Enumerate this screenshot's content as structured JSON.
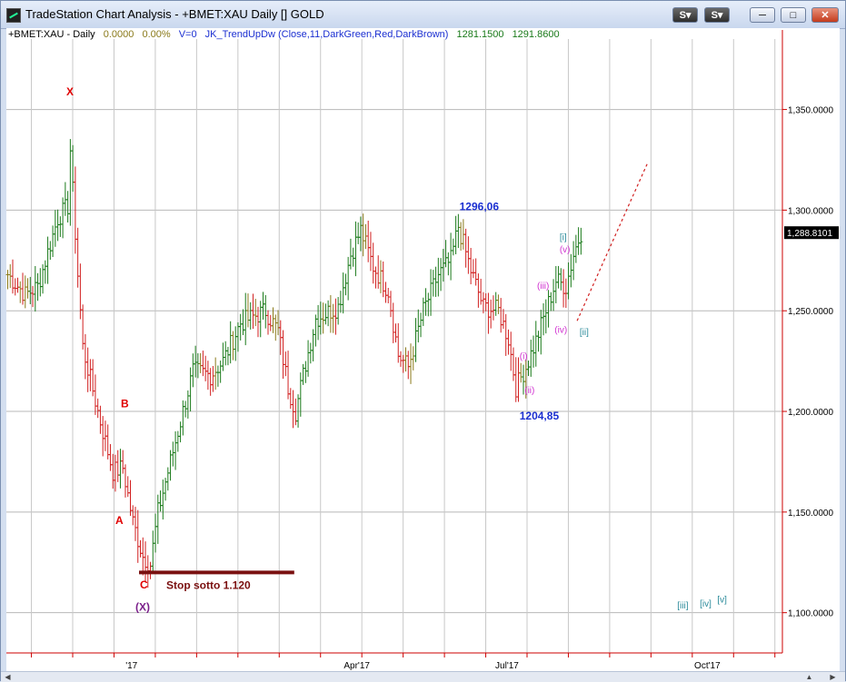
{
  "window": {
    "title": "TradeStation Chart Analysis - +BMET:XAU Daily [] GOLD",
    "buttons": [
      "S",
      "S"
    ],
    "controls": [
      "minimize",
      "restore",
      "close"
    ]
  },
  "status_line": {
    "symbol": "+BMET:XAU - Daily",
    "change": "0.0000",
    "change_pct": "0.00%",
    "volume": "V=0",
    "indicator": "JK_TrendUpDw (Close,11,DarkGreen,Red,DarkBrown)",
    "value1": "1281.1500",
    "value2": "1291.8600"
  },
  "colors": {
    "up": "#1a7a1a",
    "down": "#d11f1f",
    "neutral": "#8a7a1a",
    "label_red": "#e00000",
    "label_blue": "#1b2fd1",
    "label_purple": "#7a1f8a",
    "label_magenta": "#d030d0",
    "label_teal": "#2a8a9a",
    "stop_line": "#7a1010"
  },
  "chart_data": {
    "type": "ohlc",
    "ylim": [
      1080,
      1385
    ],
    "y_ticks": [
      1100,
      1150,
      1200,
      1250,
      1300,
      1350
    ],
    "y_tick_labels": [
      "1,100.0000",
      "1,150.0000",
      "1,200.0000",
      "1,250.0000",
      "1,300.0000",
      "1,350.0000"
    ],
    "last_price_label": "1,288.8101",
    "last_price": 1288.81,
    "x_range_days": [
      0,
      310
    ],
    "x_tick_days": [
      50,
      128,
      190
    ],
    "x_tick_labels": [
      "'17",
      "Apr'17",
      "Jul'17",
      "Oct'17"
    ],
    "x_tick_label_days": [
      50,
      140,
      200,
      280
    ],
    "grid": true,
    "wave_labels": [
      {
        "text": "X",
        "day": 0,
        "price": 1357,
        "color": "label_red"
      },
      {
        "text": "B",
        "day": 45,
        "price": 1202,
        "color": "label_red"
      },
      {
        "text": "A",
        "day": 42,
        "price": 1144,
        "color": "label_red"
      },
      {
        "text": "C",
        "day": 53,
        "price": 1112,
        "color": "label_red"
      },
      {
        "text": "(X)",
        "day": 53,
        "price": 1101,
        "color": "label_purple"
      },
      {
        "text": "1296,06",
        "day": 181,
        "price": 1300,
        "color": "label_blue"
      },
      {
        "text": "1204,85",
        "day": 205,
        "price": 1196,
        "color": "label_blue"
      },
      {
        "text": "[i]",
        "day": 221,
        "price": 1285,
        "color": "label_teal"
      },
      {
        "text": "(v)",
        "day": 221,
        "price": 1279,
        "color": "label_magenta"
      },
      {
        "text": "(iii)",
        "day": 212,
        "price": 1261,
        "color": "label_magenta"
      },
      {
        "text": "(iv)",
        "day": 219,
        "price": 1239,
        "color": "label_magenta"
      },
      {
        "text": "[ii]",
        "day": 229,
        "price": 1238,
        "color": "label_teal"
      },
      {
        "text": "(i)",
        "day": 205,
        "price": 1226,
        "color": "label_magenta"
      },
      {
        "text": "(ii)",
        "day": 207,
        "price": 1209,
        "color": "label_magenta"
      },
      {
        "text": "[iii]",
        "day": 268,
        "price": 1102,
        "color": "label_teal"
      },
      {
        "text": "[iv]",
        "day": 277,
        "price": 1103,
        "color": "label_teal"
      },
      {
        "text": "[v]",
        "day": 284,
        "price": 1105,
        "color": "label_teal"
      }
    ],
    "annotation": {
      "text": "Stop sotto 1.120",
      "price": 1120,
      "day_start": 53,
      "day_end": 115
    },
    "projection": {
      "start": [
        228,
        1245
      ],
      "end": [
        256,
        1323
      ]
    },
    "anchors": [
      [
        0,
        1268
      ],
      [
        7,
        1258
      ],
      [
        12,
        1262
      ],
      [
        20,
        1296
      ],
      [
        24,
        1302
      ],
      [
        25,
        1330
      ],
      [
        28,
        1268
      ],
      [
        30,
        1232
      ],
      [
        36,
        1200
      ],
      [
        39,
        1185
      ],
      [
        42,
        1170
      ],
      [
        46,
        1172
      ],
      [
        50,
        1145
      ],
      [
        54,
        1128
      ],
      [
        57,
        1124
      ],
      [
        60,
        1150
      ],
      [
        67,
        1185
      ],
      [
        74,
        1220
      ],
      [
        81,
        1218
      ],
      [
        86,
        1225
      ],
      [
        93,
        1244
      ],
      [
        103,
        1250
      ],
      [
        108,
        1240
      ],
      [
        112,
        1212
      ],
      [
        115,
        1200
      ],
      [
        118,
        1218
      ],
      [
        123,
        1246
      ],
      [
        132,
        1252
      ],
      [
        137,
        1278
      ],
      [
        141,
        1290
      ],
      [
        146,
        1272
      ],
      [
        152,
        1260
      ],
      [
        156,
        1228
      ],
      [
        160,
        1222
      ],
      [
        166,
        1250
      ],
      [
        172,
        1268
      ],
      [
        177,
        1275
      ],
      [
        180,
        1292
      ],
      [
        185,
        1270
      ],
      [
        190,
        1252
      ],
      [
        196,
        1250
      ],
      [
        200,
        1236
      ],
      [
        203,
        1212
      ],
      [
        207,
        1222
      ],
      [
        211,
        1235
      ],
      [
        215,
        1250
      ],
      [
        219,
        1265
      ],
      [
        223,
        1262
      ],
      [
        226,
        1278
      ],
      [
        229,
        1289
      ]
    ]
  }
}
